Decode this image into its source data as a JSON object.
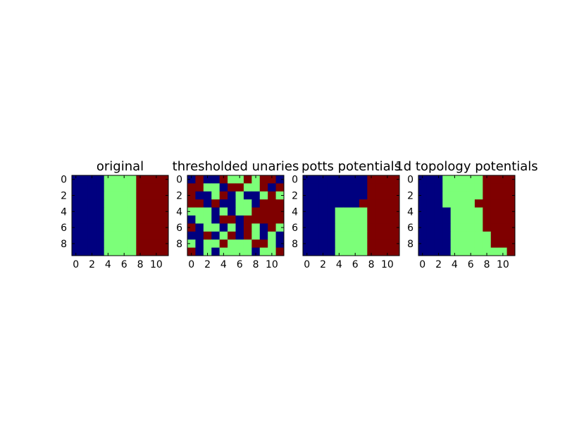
{
  "colors": {
    "0": "#00007f",
    "1": "#7cff79",
    "2": "#7f0000"
  },
  "chart_data": [
    {
      "type": "heatmap",
      "title": "original",
      "xticks": [
        "0",
        "2",
        "4",
        "6",
        "8",
        "10"
      ],
      "yticks": [
        "0",
        "2",
        "4",
        "6",
        "8"
      ],
      "grid": [
        [
          0,
          0,
          0,
          0,
          1,
          1,
          1,
          1,
          2,
          2,
          2,
          2
        ],
        [
          0,
          0,
          0,
          0,
          1,
          1,
          1,
          1,
          2,
          2,
          2,
          2
        ],
        [
          0,
          0,
          0,
          0,
          1,
          1,
          1,
          1,
          2,
          2,
          2,
          2
        ],
        [
          0,
          0,
          0,
          0,
          1,
          1,
          1,
          1,
          2,
          2,
          2,
          2
        ],
        [
          0,
          0,
          0,
          0,
          1,
          1,
          1,
          1,
          2,
          2,
          2,
          2
        ],
        [
          0,
          0,
          0,
          0,
          1,
          1,
          1,
          1,
          2,
          2,
          2,
          2
        ],
        [
          0,
          0,
          0,
          0,
          1,
          1,
          1,
          1,
          2,
          2,
          2,
          2
        ],
        [
          0,
          0,
          0,
          0,
          1,
          1,
          1,
          1,
          2,
          2,
          2,
          2
        ],
        [
          0,
          0,
          0,
          0,
          1,
          1,
          1,
          1,
          2,
          2,
          2,
          2
        ],
        [
          0,
          0,
          0,
          0,
          1,
          1,
          1,
          1,
          2,
          2,
          2,
          2
        ]
      ]
    },
    {
      "type": "heatmap",
      "title": "thresholded unaries",
      "xticks": [
        "0",
        "2",
        "4",
        "6",
        "8",
        "10"
      ],
      "yticks": [
        "0",
        "2",
        "4",
        "6",
        "8"
      ],
      "grid": [
        [
          0,
          2,
          0,
          0,
          2,
          1,
          1,
          2,
          1,
          2,
          2,
          0
        ],
        [
          2,
          2,
          1,
          1,
          0,
          2,
          2,
          1,
          1,
          2,
          0,
          2
        ],
        [
          2,
          0,
          0,
          1,
          2,
          0,
          1,
          0,
          0,
          1,
          2,
          1
        ],
        [
          2,
          2,
          0,
          2,
          0,
          0,
          1,
          1,
          0,
          2,
          2,
          2
        ],
        [
          1,
          1,
          1,
          0,
          1,
          0,
          1,
          1,
          2,
          2,
          2,
          2
        ],
        [
          0,
          1,
          1,
          0,
          2,
          2,
          0,
          2,
          2,
          2,
          2,
          2
        ],
        [
          2,
          0,
          1,
          1,
          0,
          1,
          0,
          2,
          1,
          0,
          2,
          1
        ],
        [
          0,
          0,
          2,
          0,
          1,
          2,
          0,
          2,
          1,
          0,
          1,
          0
        ],
        [
          1,
          0,
          1,
          1,
          2,
          1,
          1,
          1,
          2,
          2,
          1,
          0
        ],
        [
          2,
          0,
          1,
          0,
          1,
          1,
          1,
          1,
          0,
          1,
          1,
          2
        ]
      ]
    },
    {
      "type": "heatmap",
      "title": "potts potentials",
      "xticks": [
        "0",
        "2",
        "4",
        "6",
        "8",
        "10"
      ],
      "yticks": [
        "0",
        "2",
        "4",
        "6",
        "8"
      ],
      "grid": [
        [
          0,
          0,
          0,
          0,
          0,
          0,
          0,
          0,
          2,
          2,
          2,
          2
        ],
        [
          0,
          0,
          0,
          0,
          0,
          0,
          0,
          0,
          2,
          2,
          2,
          2
        ],
        [
          0,
          0,
          0,
          0,
          0,
          0,
          0,
          0,
          2,
          2,
          2,
          2
        ],
        [
          0,
          0,
          0,
          0,
          0,
          0,
          0,
          2,
          2,
          2,
          2,
          2
        ],
        [
          0,
          0,
          0,
          0,
          1,
          1,
          1,
          1,
          2,
          2,
          2,
          2
        ],
        [
          0,
          0,
          0,
          0,
          1,
          1,
          1,
          1,
          2,
          2,
          2,
          2
        ],
        [
          0,
          0,
          0,
          0,
          1,
          1,
          1,
          1,
          2,
          2,
          2,
          2
        ],
        [
          0,
          0,
          0,
          0,
          1,
          1,
          1,
          1,
          2,
          2,
          2,
          2
        ],
        [
          0,
          0,
          0,
          0,
          1,
          1,
          1,
          1,
          2,
          2,
          2,
          2
        ],
        [
          0,
          0,
          0,
          0,
          1,
          1,
          1,
          1,
          2,
          2,
          2,
          2
        ]
      ]
    },
    {
      "type": "heatmap",
      "title": "1d topology potentials",
      "xticks": [
        "0",
        "2",
        "4",
        "6",
        "8",
        "10"
      ],
      "yticks": [
        "0",
        "2",
        "4",
        "6",
        "8"
      ],
      "grid": [
        [
          0,
          0,
          0,
          1,
          1,
          1,
          1,
          1,
          2,
          2,
          2,
          2
        ],
        [
          0,
          0,
          0,
          1,
          1,
          1,
          1,
          1,
          2,
          2,
          2,
          2
        ],
        [
          0,
          0,
          0,
          1,
          1,
          1,
          1,
          1,
          2,
          2,
          2,
          2
        ],
        [
          0,
          0,
          0,
          1,
          1,
          1,
          1,
          2,
          2,
          2,
          2,
          2
        ],
        [
          0,
          0,
          0,
          0,
          1,
          1,
          1,
          1,
          2,
          2,
          2,
          2
        ],
        [
          0,
          0,
          0,
          0,
          1,
          1,
          1,
          1,
          2,
          2,
          2,
          2
        ],
        [
          0,
          0,
          0,
          0,
          1,
          1,
          1,
          1,
          2,
          2,
          2,
          2
        ],
        [
          0,
          0,
          0,
          0,
          1,
          1,
          1,
          1,
          1,
          2,
          2,
          2
        ],
        [
          0,
          0,
          0,
          0,
          1,
          1,
          1,
          1,
          1,
          2,
          2,
          2
        ],
        [
          0,
          0,
          0,
          0,
          1,
          1,
          1,
          1,
          1,
          1,
          1,
          2
        ]
      ]
    }
  ]
}
